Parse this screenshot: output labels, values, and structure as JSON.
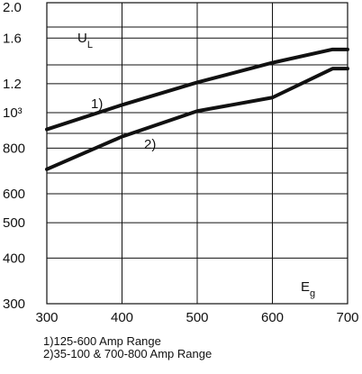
{
  "chart_data": {
    "type": "line",
    "title": "",
    "xlabel": "Eg",
    "ylabel": "UL",
    "x_ticks": [
      "300",
      "400",
      "500",
      "600",
      "700"
    ],
    "xlim": [
      300,
      700
    ],
    "y_scale": "log",
    "ylim": [
      300,
      2000
    ],
    "y_ticks": [
      "300",
      "400",
      "500",
      "600",
      "800",
      "10³",
      "1.2",
      "1.6",
      "2.0"
    ],
    "y_tick_values": [
      300,
      400,
      500,
      600,
      800,
      1000,
      1200,
      1600,
      2000
    ],
    "grid": true,
    "series": [
      {
        "name": "1)",
        "x": [
          300,
          400,
          500,
          600,
          680,
          700
        ],
        "y": [
          900,
          1050,
          1210,
          1370,
          1490,
          1490
        ]
      },
      {
        "name": "2)",
        "x": [
          300,
          400,
          500,
          600,
          680,
          700
        ],
        "y": [
          700,
          860,
          1010,
          1100,
          1320,
          1320
        ]
      }
    ],
    "annotations": [
      "1)125-600 Amp Range",
      "2)35-100 & 700-800 Amp Range"
    ],
    "colors": {
      "line": "#111111",
      "grid": "#111111"
    }
  }
}
